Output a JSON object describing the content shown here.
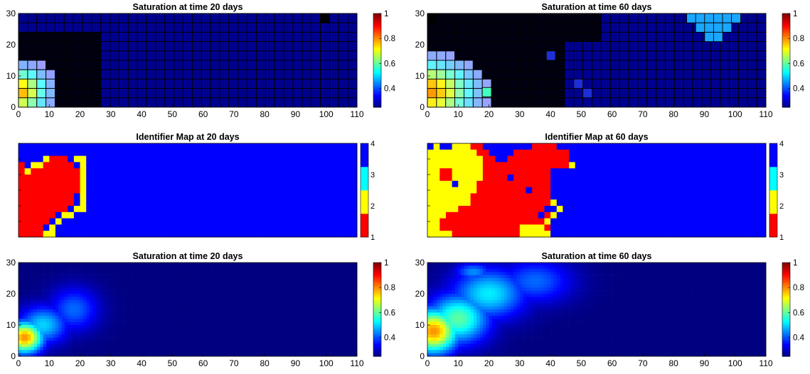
{
  "figure": {
    "colors": {
      "jet_low": "#00008f",
      "grid_line": "#000000",
      "id_red": "#ff0000",
      "id_yellow": "#ffff00",
      "id_cyan": "#00ffff",
      "id_blue": "#0000ff"
    }
  },
  "chart_data": [
    {
      "panel": "sat20_coarse",
      "type": "heatmap",
      "title": "Saturation at time 20 days",
      "xlim": [
        0,
        110
      ],
      "ylim": [
        0,
        30
      ],
      "xticks": [
        0,
        10,
        20,
        30,
        40,
        50,
        60,
        70,
        80,
        90,
        100,
        110
      ],
      "yticks": [
        0,
        10,
        20,
        30
      ],
      "colorbar": {
        "range": [
          0.25,
          1
        ],
        "ticks": [
          0.4,
          0.6,
          0.8,
          1
        ],
        "colormap": "jet"
      },
      "grid": "coarse",
      "cells_x": 37,
      "cells_y": 10,
      "plume": {
        "center": [
          0,
          5
        ],
        "peak": 0.78,
        "spread_x": 10,
        "spread_y": 8
      },
      "dark_region": [
        {
          "x": [
            0,
            28
          ],
          "y": [
            0,
            25
          ]
        }
      ],
      "bright_cells": [
        {
          "col": 33,
          "row": 0,
          "value": 0.25
        }
      ]
    },
    {
      "panel": "sat60_coarse",
      "type": "heatmap",
      "title": "Saturation at time 60 days",
      "xlim": [
        0,
        110
      ],
      "ylim": [
        0,
        30
      ],
      "xticks": [
        0,
        10,
        20,
        30,
        40,
        50,
        60,
        70,
        80,
        90,
        100,
        110
      ],
      "yticks": [
        0,
        10,
        20,
        30
      ],
      "colorbar": {
        "range": [
          0.25,
          1
        ],
        "ticks": [
          0.4,
          0.6,
          0.8,
          1
        ],
        "colormap": "jet"
      },
      "grid": "coarse",
      "cells_x": 37,
      "cells_y": 10,
      "plume": {
        "center": [
          0,
          5
        ],
        "peak": 0.8,
        "spread_x": 16,
        "spread_y": 10
      },
      "dark_region": [
        {
          "x": [
            0,
            46
          ],
          "y": [
            0,
            30
          ]
        },
        {
          "x": [
            46,
            55
          ],
          "y": [
            20,
            30
          ]
        }
      ],
      "cyan_cells": [
        {
          "col": 8,
          "row": 0
        },
        {
          "col": 9,
          "row": 0
        },
        {
          "col": 10,
          "row": 0
        },
        {
          "col": 11,
          "row": 0
        },
        {
          "col": 12,
          "row": 0
        },
        {
          "col": 13,
          "row": 0
        },
        {
          "col": 9,
          "row": 1
        },
        {
          "col": 10,
          "row": 1
        },
        {
          "col": 11,
          "row": 1
        },
        {
          "col": 12,
          "row": 1
        },
        {
          "col": 10,
          "row": 2
        },
        {
          "col": 11,
          "row": 2
        }
      ],
      "cyan_value": 0.52,
      "teal_cells": [
        {
          "col": 6,
          "row": 4,
          "value": 0.58
        }
      ],
      "blue_cells": [
        {
          "col": 13,
          "row": 4
        },
        {
          "col": 16,
          "row": 7
        },
        {
          "col": 17,
          "row": 8
        }
      ],
      "blue_value": 0.33,
      "bright_cells": [
        {
          "col": 0,
          "row": 0,
          "value": 0.25
        }
      ]
    },
    {
      "panel": "id20",
      "type": "heatmap",
      "title": "Identifier Map at 20 days",
      "xlim": [
        0,
        110
      ],
      "ylim": [
        0,
        30
      ],
      "colorbar": {
        "range": [
          1,
          4
        ],
        "ticks": [
          1,
          2,
          3,
          4
        ],
        "colormap": "discrete"
      },
      "categories": [
        "1",
        "2",
        "3",
        "4"
      ],
      "cells_x": 55,
      "cells_y": 15,
      "default": 4,
      "red_rows": [
        {
          "row": 2,
          "segments": [
            [
              5,
              8
            ]
          ]
        },
        {
          "row": 3,
          "segments": [
            [
              0,
              1
            ],
            [
              4,
              9
            ]
          ]
        },
        {
          "row": 4,
          "segments": [
            [
              0,
              10
            ]
          ]
        },
        {
          "row": 5,
          "segments": [
            [
              0,
              10
            ]
          ]
        },
        {
          "row": 6,
          "segments": [
            [
              0,
              10
            ]
          ]
        },
        {
          "row": 7,
          "segments": [
            [
              0,
              10
            ]
          ]
        },
        {
          "row": 8,
          "segments": [
            [
              0,
              9
            ]
          ]
        },
        {
          "row": 9,
          "segments": [
            [
              0,
              9
            ]
          ]
        },
        {
          "row": 10,
          "segments": [
            [
              0,
              8
            ]
          ]
        },
        {
          "row": 11,
          "segments": [
            [
              0,
              6
            ]
          ]
        },
        {
          "row": 12,
          "segments": [
            [
              0,
              5
            ]
          ]
        },
        {
          "row": 13,
          "segments": [
            [
              0,
              4
            ]
          ]
        },
        {
          "row": 14,
          "segments": [
            [
              0,
              4
            ]
          ]
        }
      ],
      "yellow_rows": [
        {
          "row": 2,
          "segments": [
            [
              4,
              5
            ],
            [
              9,
              11
            ]
          ]
        },
        {
          "row": 3,
          "segments": [
            [
              2,
              4
            ],
            [
              10,
              11
            ]
          ]
        },
        {
          "row": 4,
          "segments": [
            [
              1,
              2
            ],
            [
              10,
              11
            ]
          ]
        },
        {
          "row": 5,
          "segments": [
            [
              10,
              11
            ]
          ]
        },
        {
          "row": 6,
          "segments": [
            [
              10,
              11
            ]
          ]
        },
        {
          "row": 7,
          "segments": [
            [
              10,
              11
            ]
          ]
        },
        {
          "row": 8,
          "segments": [
            [
              10,
              11
            ]
          ]
        },
        {
          "row": 9,
          "segments": [
            [
              10,
              11
            ]
          ]
        },
        {
          "row": 10,
          "segments": [
            [
              9,
              11
            ]
          ]
        },
        {
          "row": 11,
          "segments": [
            [
              7,
              9
            ]
          ]
        },
        {
          "row": 12,
          "segments": [
            [
              6,
              7
            ]
          ]
        },
        {
          "row": 13,
          "segments": [
            [
              5,
              6
            ]
          ]
        },
        {
          "row": 14,
          "segments": [
            [
              4,
              6
            ]
          ]
        }
      ]
    },
    {
      "panel": "id60",
      "type": "heatmap",
      "title": "Identifier Map at 60 days",
      "xlim": [
        0,
        110
      ],
      "ylim": [
        0,
        30
      ],
      "colorbar": {
        "range": [
          1,
          4
        ],
        "ticks": [
          1,
          2,
          3,
          4
        ],
        "colormap": "discrete"
      },
      "categories": [
        "1",
        "2",
        "3",
        "4"
      ],
      "cells_x": 55,
      "cells_y": 15,
      "default": 4,
      "yellow_rows": [
        {
          "row": 0,
          "segments": [
            [
              1,
              3
            ],
            [
              4,
              7
            ]
          ]
        },
        {
          "row": 1,
          "segments": [
            [
              0,
              8
            ]
          ]
        },
        {
          "row": 2,
          "segments": [
            [
              0,
              9
            ]
          ]
        },
        {
          "row": 3,
          "segments": [
            [
              0,
              9
            ]
          ]
        },
        {
          "row": 4,
          "segments": [
            [
              0,
              9
            ]
          ]
        },
        {
          "row": 5,
          "segments": [
            [
              0,
              9
            ]
          ]
        },
        {
          "row": 6,
          "segments": [
            [
              0,
              8
            ]
          ]
        },
        {
          "row": 7,
          "segments": [
            [
              0,
              8
            ]
          ]
        },
        {
          "row": 8,
          "segments": [
            [
              0,
              7
            ]
          ]
        },
        {
          "row": 9,
          "segments": [
            [
              0,
              7
            ]
          ]
        },
        {
          "row": 10,
          "segments": [
            [
              0,
              5
            ]
          ]
        },
        {
          "row": 11,
          "segments": [
            [
              0,
              3
            ]
          ]
        },
        {
          "row": 12,
          "segments": [
            [
              0,
              2
            ]
          ]
        },
        {
          "row": 13,
          "segments": [
            [
              0,
              2
            ]
          ]
        },
        {
          "row": 14,
          "segments": [
            [
              0,
              4
            ]
          ]
        },
        {
          "row": 13,
          "segments": [
            [
              15,
              19
            ]
          ]
        },
        {
          "row": 14,
          "segments": [
            [
              15,
              20
            ]
          ]
        },
        {
          "row": 9,
          "segments": [
            [
              20,
              21
            ]
          ]
        },
        {
          "row": 10,
          "segments": [
            [
              21,
              22
            ]
          ]
        },
        {
          "row": 11,
          "segments": [
            [
              20,
              21
            ]
          ]
        },
        {
          "row": 12,
          "segments": [
            [
              19,
              20
            ]
          ]
        },
        {
          "row": 3,
          "segments": [
            [
              23,
              24
            ]
          ]
        }
      ],
      "red_rows": [
        {
          "row": 0,
          "segments": [
            [
              7,
              9
            ],
            [
              17,
              21
            ]
          ]
        },
        {
          "row": 1,
          "segments": [
            [
              8,
              10
            ],
            [
              14,
              23
            ]
          ]
        },
        {
          "row": 2,
          "segments": [
            [
              9,
              11
            ],
            [
              13,
              23
            ]
          ]
        },
        {
          "row": 3,
          "segments": [
            [
              9,
              23
            ]
          ]
        },
        {
          "row": 4,
          "segments": [
            [
              9,
              20
            ]
          ]
        },
        {
          "row": 5,
          "segments": [
            [
              9,
              20
            ]
          ]
        },
        {
          "row": 6,
          "segments": [
            [
              8,
              20
            ]
          ]
        },
        {
          "row": 7,
          "segments": [
            [
              8,
              20
            ]
          ]
        },
        {
          "row": 8,
          "segments": [
            [
              7,
              20
            ]
          ]
        },
        {
          "row": 9,
          "segments": [
            [
              7,
              20
            ]
          ]
        },
        {
          "row": 10,
          "segments": [
            [
              5,
              20
            ]
          ]
        },
        {
          "row": 11,
          "segments": [
            [
              3,
              20
            ]
          ]
        },
        {
          "row": 12,
          "segments": [
            [
              2,
              19
            ]
          ]
        },
        {
          "row": 13,
          "segments": [
            [
              2,
              15
            ],
            [
              19,
              20
            ]
          ]
        },
        {
          "row": 14,
          "segments": [
            [
              4,
              15
            ]
          ]
        }
      ],
      "fixed_cells": [
        {
          "col": 2,
          "row": 4,
          "value": 1
        },
        {
          "col": 3,
          "row": 4,
          "value": 1
        },
        {
          "col": 2,
          "row": 5,
          "value": 1
        },
        {
          "col": 3,
          "row": 5,
          "value": 1
        },
        {
          "col": 13,
          "row": 5,
          "value": 4
        },
        {
          "col": 4,
          "row": 6,
          "value": 4
        },
        {
          "col": 2,
          "row": 0,
          "value": 4
        },
        {
          "col": 18,
          "row": 11,
          "value": 4
        },
        {
          "col": 19,
          "row": 10,
          "value": 4
        },
        {
          "col": 16,
          "row": 7,
          "value": 4
        },
        {
          "col": 18,
          "row": 13,
          "value": 2
        },
        {
          "col": 17,
          "row": 13,
          "value": 2
        }
      ]
    },
    {
      "panel": "sat20_fine",
      "type": "heatmap",
      "title": "Saturation at time 20 days",
      "xlim": [
        0,
        110
      ],
      "ylim": [
        0,
        30
      ],
      "xticks": [
        0,
        10,
        20,
        30,
        40,
        50,
        60,
        70,
        80,
        90,
        100,
        110
      ],
      "yticks": [
        0,
        10,
        20,
        30
      ],
      "colorbar": {
        "range": [
          0.25,
          1
        ],
        "ticks": [
          0.4,
          0.6,
          0.8,
          1
        ],
        "colormap": "jet"
      },
      "grid": "fine",
      "blobs": [
        {
          "center": [
            2,
            6
          ],
          "peak": 0.8,
          "spread_x": 6,
          "spread_y": 5
        },
        {
          "center": [
            8,
            10
          ],
          "peak": 0.5,
          "spread_x": 8,
          "spread_y": 6
        },
        {
          "center": [
            18,
            15
          ],
          "peak": 0.42,
          "spread_x": 8,
          "spread_y": 7
        }
      ]
    },
    {
      "panel": "sat60_fine",
      "type": "heatmap",
      "title": "Saturation at time 60 days",
      "xlim": [
        0,
        110
      ],
      "ylim": [
        0,
        30
      ],
      "xticks": [
        0,
        10,
        20,
        30,
        40,
        50,
        60,
        70,
        80,
        90,
        100,
        110
      ],
      "yticks": [
        0,
        10,
        20,
        30
      ],
      "colorbar": {
        "range": [
          0.25,
          1
        ],
        "ticks": [
          0.4,
          0.6,
          0.8,
          1
        ],
        "colormap": "jet"
      },
      "grid": "fine",
      "blobs": [
        {
          "center": [
            2,
            8
          ],
          "peak": 0.8,
          "spread_x": 8,
          "spread_y": 7
        },
        {
          "center": [
            10,
            12
          ],
          "peak": 0.6,
          "spread_x": 10,
          "spread_y": 8
        },
        {
          "center": [
            20,
            20
          ],
          "peak": 0.52,
          "spread_x": 12,
          "spread_y": 8
        },
        {
          "center": [
            35,
            24
          ],
          "peak": 0.42,
          "spread_x": 12,
          "spread_y": 7
        },
        {
          "center": [
            15,
            27
          ],
          "peak": 0.45,
          "spread_x": 6,
          "spread_y": 3
        }
      ]
    }
  ]
}
